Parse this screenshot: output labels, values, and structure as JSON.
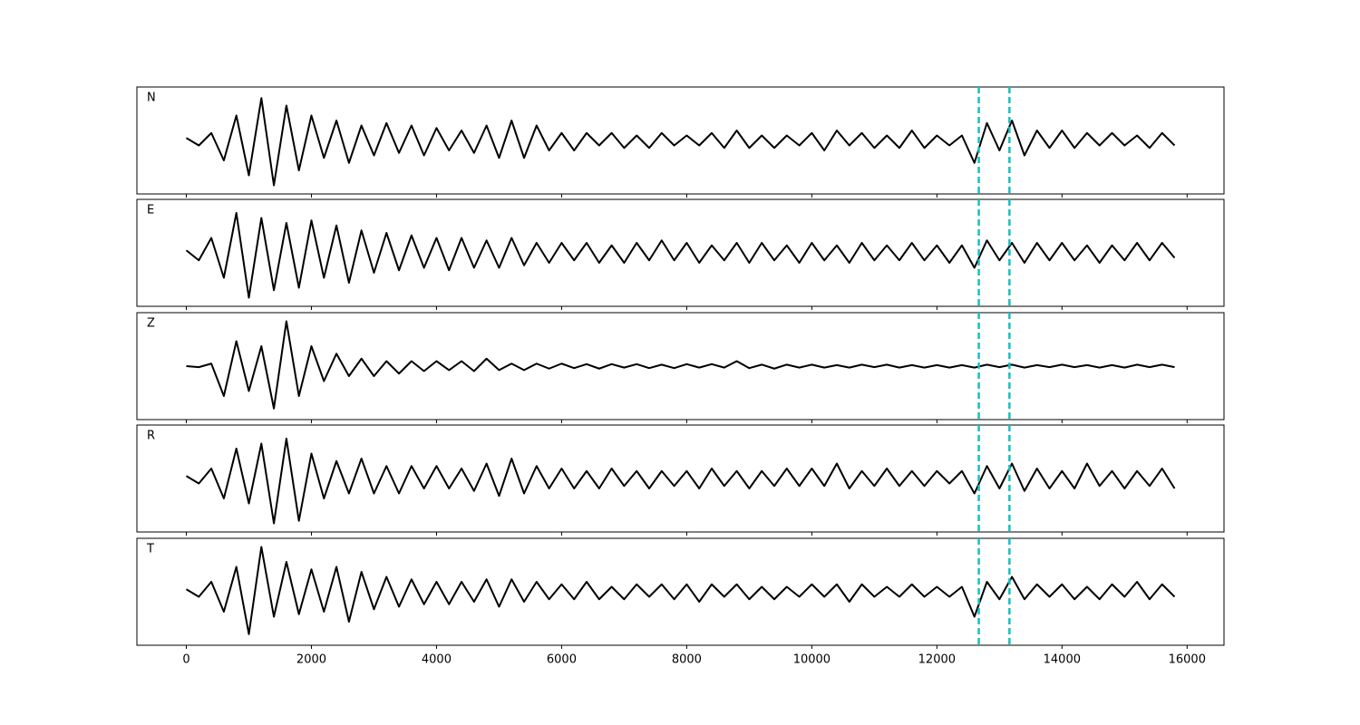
{
  "chart_data": {
    "type": "line",
    "x": [
      0,
      200,
      400,
      600,
      800,
      1000,
      1200,
      1400,
      1600,
      1800,
      2000,
      2200,
      2400,
      2600,
      2800,
      3000,
      3200,
      3400,
      3600,
      3800,
      4000,
      4200,
      4400,
      4600,
      4800,
      5000,
      5200,
      5400,
      5600,
      5800,
      6000,
      6200,
      6400,
      6600,
      6800,
      7000,
      7200,
      7400,
      7600,
      7800,
      8000,
      8200,
      8400,
      8600,
      8800,
      9000,
      9200,
      9400,
      9600,
      9800,
      10000,
      10200,
      10400,
      10600,
      10800,
      11000,
      11200,
      11400,
      11600,
      11800,
      12000,
      12200,
      12400,
      12600,
      12800,
      13000,
      13200,
      13400,
      13600,
      13800,
      14000,
      14200,
      14400,
      14600,
      14800,
      15000,
      15200,
      15400,
      15600,
      15800
    ],
    "series": [
      {
        "name": "N",
        "color": "#000000",
        "values": [
          0.05,
          -0.1,
          0.15,
          -0.4,
          0.5,
          -0.7,
          0.85,
          -0.9,
          0.7,
          -0.6,
          0.5,
          -0.35,
          0.4,
          -0.45,
          0.3,
          -0.3,
          0.35,
          -0.25,
          0.3,
          -0.3,
          0.25,
          -0.2,
          0.2,
          -0.25,
          0.3,
          -0.35,
          0.4,
          -0.35,
          0.3,
          -0.2,
          0.15,
          -0.2,
          0.15,
          -0.1,
          0.15,
          -0.15,
          0.1,
          -0.15,
          0.15,
          -0.1,
          0.1,
          -0.1,
          0.15,
          -0.15,
          0.2,
          -0.15,
          0.1,
          -0.15,
          0.1,
          -0.1,
          0.15,
          -0.2,
          0.2,
          -0.1,
          0.15,
          -0.15,
          0.1,
          -0.15,
          0.2,
          -0.15,
          0.1,
          -0.1,
          0.1,
          -0.45,
          0.35,
          -0.2,
          0.4,
          -0.3,
          0.2,
          -0.15,
          0.2,
          -0.15,
          0.15,
          -0.1,
          0.15,
          -0.1,
          0.1,
          -0.15,
          0.15,
          -0.1
        ]
      },
      {
        "name": "E",
        "color": "#000000",
        "values": [
          0.05,
          -0.15,
          0.3,
          -0.5,
          0.8,
          -0.9,
          0.7,
          -0.75,
          0.6,
          -0.7,
          0.65,
          -0.5,
          0.55,
          -0.6,
          0.45,
          -0.4,
          0.4,
          -0.35,
          0.35,
          -0.3,
          0.3,
          -0.35,
          0.3,
          -0.3,
          0.25,
          -0.3,
          0.3,
          -0.25,
          0.2,
          -0.2,
          0.2,
          -0.15,
          0.2,
          -0.2,
          0.15,
          -0.2,
          0.2,
          -0.15,
          0.25,
          -0.15,
          0.2,
          -0.2,
          0.15,
          -0.15,
          0.2,
          -0.2,
          0.2,
          -0.15,
          0.15,
          -0.2,
          0.2,
          -0.15,
          0.15,
          -0.2,
          0.2,
          -0.15,
          0.15,
          -0.15,
          0.2,
          -0.15,
          0.15,
          -0.2,
          0.15,
          -0.3,
          0.25,
          -0.15,
          0.2,
          -0.2,
          0.2,
          -0.15,
          0.2,
          -0.15,
          0.15,
          -0.2,
          0.15,
          -0.15,
          0.2,
          -0.15,
          0.2,
          -0.1
        ]
      },
      {
        "name": "Z",
        "color": "#000000",
        "values": [
          0,
          -0.02,
          0.05,
          -0.6,
          0.5,
          -0.5,
          0.4,
          -0.85,
          0.9,
          -0.6,
          0.4,
          -0.3,
          0.25,
          -0.2,
          0.15,
          -0.2,
          0.1,
          -0.15,
          0.1,
          -0.1,
          0.1,
          -0.08,
          0.1,
          -0.1,
          0.15,
          -0.08,
          0.05,
          -0.08,
          0.05,
          -0.05,
          0.05,
          -0.04,
          0.04,
          -0.05,
          0.04,
          -0.03,
          0.04,
          -0.04,
          0.03,
          -0.04,
          0.04,
          -0.03,
          0.04,
          -0.03,
          0.1,
          -0.04,
          0.03,
          -0.05,
          0.03,
          -0.03,
          0.03,
          -0.03,
          0.02,
          -0.03,
          0.03,
          -0.02,
          0.03,
          -0.03,
          0.02,
          -0.03,
          0.02,
          -0.03,
          0.02,
          -0.03,
          0.03,
          -0.02,
          0.03,
          -0.03,
          0.02,
          -0.02,
          0.03,
          -0.02,
          0.02,
          -0.03,
          0.02,
          -0.03,
          0.03,
          -0.02,
          0.03,
          -0.02
        ]
      },
      {
        "name": "R",
        "color": "#000000",
        "values": [
          0.05,
          -0.1,
          0.2,
          -0.4,
          0.6,
          -0.5,
          0.7,
          -0.9,
          0.8,
          -0.85,
          0.5,
          -0.4,
          0.35,
          -0.3,
          0.4,
          -0.3,
          0.25,
          -0.3,
          0.25,
          -0.2,
          0.25,
          -0.2,
          0.2,
          -0.25,
          0.3,
          -0.35,
          0.4,
          -0.3,
          0.25,
          -0.2,
          0.2,
          -0.2,
          0.15,
          -0.2,
          0.2,
          -0.15,
          0.15,
          -0.2,
          0.15,
          -0.15,
          0.15,
          -0.2,
          0.2,
          -0.15,
          0.15,
          -0.2,
          0.15,
          -0.15,
          0.2,
          -0.15,
          0.2,
          -0.15,
          0.3,
          -0.2,
          0.15,
          -0.15,
          0.2,
          -0.15,
          0.15,
          -0.15,
          0.15,
          -0.1,
          0.15,
          -0.3,
          0.25,
          -0.2,
          0.3,
          -0.25,
          0.2,
          -0.2,
          0.15,
          -0.2,
          0.3,
          -0.15,
          0.15,
          -0.2,
          0.15,
          -0.15,
          0.2,
          -0.2
        ]
      },
      {
        "name": "T",
        "color": "#000000",
        "values": [
          0.05,
          -0.1,
          0.2,
          -0.4,
          0.5,
          -0.85,
          0.9,
          -0.5,
          0.6,
          -0.45,
          0.45,
          -0.4,
          0.5,
          -0.6,
          0.4,
          -0.35,
          0.3,
          -0.3,
          0.25,
          -0.25,
          0.2,
          -0.25,
          0.2,
          -0.2,
          0.25,
          -0.3,
          0.25,
          -0.2,
          0.2,
          -0.15,
          0.15,
          -0.15,
          0.2,
          -0.15,
          0.1,
          -0.15,
          0.15,
          -0.1,
          0.15,
          -0.15,
          0.15,
          -0.2,
          0.15,
          -0.1,
          0.15,
          -0.15,
          0.1,
          -0.15,
          0.1,
          -0.1,
          0.15,
          -0.1,
          0.15,
          -0.2,
          0.15,
          -0.1,
          0.1,
          -0.1,
          0.15,
          -0.1,
          0.1,
          -0.1,
          0.1,
          -0.5,
          0.2,
          -0.15,
          0.3,
          -0.15,
          0.15,
          -0.1,
          0.15,
          -0.15,
          0.1,
          -0.15,
          0.15,
          -0.1,
          0.2,
          -0.15,
          0.15,
          -0.1
        ]
      }
    ],
    "xlim": [
      -790,
      16590
    ],
    "xticks": [
      0,
      2000,
      4000,
      6000,
      8000,
      10000,
      12000,
      14000,
      16000
    ],
    "ylim": [
      -1,
      1
    ],
    "vlines": [
      12670,
      13160
    ],
    "vline_color": "#17bfbf"
  }
}
